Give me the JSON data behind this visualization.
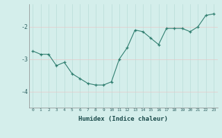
{
  "x": [
    0,
    1,
    2,
    3,
    4,
    5,
    6,
    7,
    8,
    9,
    10,
    11,
    12,
    13,
    14,
    15,
    16,
    17,
    18,
    19,
    20,
    21,
    22,
    23
  ],
  "y": [
    -2.75,
    -2.85,
    -2.85,
    -3.2,
    -3.1,
    -3.45,
    -3.6,
    -3.75,
    -3.8,
    -3.8,
    -3.7,
    -3.0,
    -2.65,
    -2.1,
    -2.15,
    -2.35,
    -2.55,
    -2.05,
    -2.05,
    -2.05,
    -2.15,
    -2.0,
    -1.65,
    -1.6
  ],
  "line_color": "#2e7d6e",
  "marker": "+",
  "marker_size": 3,
  "bg_color": "#d4eeeb",
  "grid_color": "#b8dcd8",
  "xlabel": "Humidex (Indice chaleur)",
  "ylabel": "",
  "title": "",
  "ylim": [
    -4.5,
    -1.3
  ],
  "xlim": [
    -0.5,
    23.5
  ],
  "yticks": [
    -4,
    -3,
    -2
  ],
  "xticks": [
    0,
    1,
    2,
    3,
    4,
    5,
    6,
    7,
    8,
    9,
    10,
    11,
    12,
    13,
    14,
    15,
    16,
    17,
    18,
    19,
    20,
    21,
    22,
    23
  ]
}
